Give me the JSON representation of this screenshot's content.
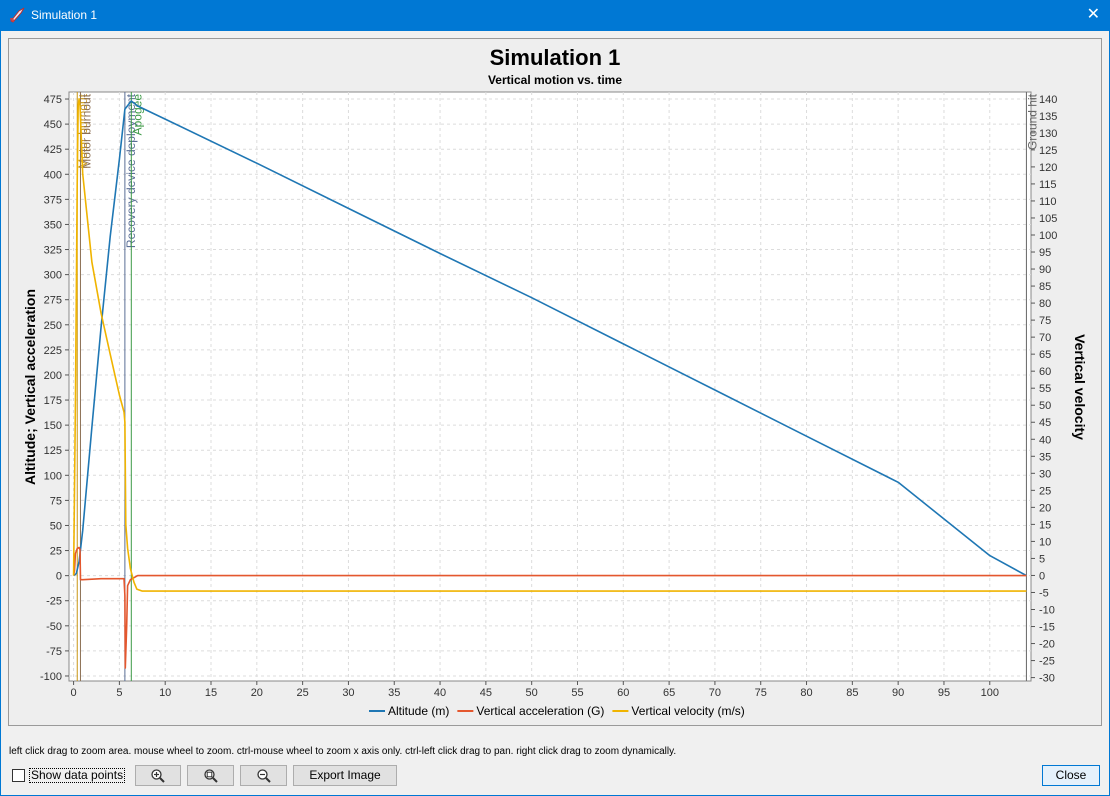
{
  "window": {
    "title": "Simulation 1",
    "close_icon": "close-icon",
    "app_icon": "rocket-icon"
  },
  "chart_data": {
    "type": "line",
    "title": "Simulation 1",
    "subtitle": "Vertical motion vs. time",
    "ylabel_left": "Altitude; Vertical acceleration",
    "ylabel_right": "Vertical velocity",
    "xlim": [
      -0.5,
      104.5
    ],
    "ylim_left": [
      -105,
      482
    ],
    "ylim_right": [
      -31,
      142
    ],
    "x_ticks": [
      0,
      5,
      10,
      15,
      20,
      25,
      30,
      35,
      40,
      45,
      50,
      55,
      60,
      65,
      70,
      75,
      80,
      85,
      90,
      95,
      100
    ],
    "y_left_ticks": [
      475,
      450,
      425,
      400,
      375,
      350,
      325,
      300,
      275,
      250,
      225,
      200,
      175,
      150,
      125,
      100,
      75,
      50,
      25,
      0,
      -25,
      -50,
      -75,
      -100
    ],
    "y_right_ticks": [
      140,
      135,
      130,
      125,
      120,
      115,
      110,
      105,
      100,
      95,
      90,
      85,
      80,
      75,
      70,
      65,
      60,
      55,
      50,
      45,
      40,
      35,
      30,
      25,
      20,
      15,
      10,
      5,
      0,
      -5,
      -10,
      -15,
      -20,
      -25,
      -30
    ],
    "grid": true,
    "legend_position": "bottom",
    "series": [
      {
        "name": "Altitude (m)",
        "axis": "left",
        "color": "#1f77b4",
        "x": [
          0,
          0.3,
          0.6,
          1,
          2,
          3,
          4,
          5,
          5.6,
          6.3,
          7,
          10,
          20,
          30,
          40,
          50,
          60,
          70,
          80,
          90,
          100,
          104
        ],
        "y": [
          0,
          2,
          14,
          45,
          148,
          248,
          338,
          415,
          465,
          473,
          468,
          455,
          411,
          366,
          321,
          277,
          231,
          185,
          139,
          93,
          20,
          0
        ]
      },
      {
        "name": "Vertical acceleration (G)",
        "axis": "left",
        "color": "#e4572e",
        "x": [
          0,
          0.1,
          0.2,
          0.4,
          0.6,
          0.7,
          0.75,
          1,
          3,
          5.5,
          5.6,
          5.65,
          5.8,
          5.9,
          6.2,
          7,
          50,
          104
        ],
        "y": [
          0,
          5,
          22,
          27,
          28,
          26,
          -4,
          -4,
          -3,
          -3,
          -20,
          -92,
          -50,
          -10,
          -4,
          0,
          0,
          0
        ]
      },
      {
        "name": "Vertical velocity (m/s)",
        "axis": "right",
        "color": "#f0b400",
        "x": [
          0,
          0.2,
          0.4,
          0.5,
          0.6,
          0.7,
          1,
          2,
          3,
          4,
          5,
          5.5,
          5.6,
          5.7,
          5.9,
          6.2,
          6.6,
          6.9,
          7.5,
          50,
          104
        ],
        "y": [
          0,
          50,
          115,
          138,
          140,
          138,
          118,
          92,
          77,
          65,
          53,
          48,
          45,
          15,
          8,
          2,
          -2,
          -4,
          -4.6,
          -4.6,
          -4.6
        ]
      }
    ],
    "events": [
      {
        "label": "Motor burnout",
        "x": 0.4,
        "color": "#c89614"
      },
      {
        "label": "Motor burnout",
        "x": 0.75,
        "color": "#8b6e52"
      },
      {
        "label": "Recovery device deployment",
        "x": 5.6,
        "color": "#5a6e96"
      },
      {
        "label": "Apogee",
        "x": 6.3,
        "color": "#3c9a46"
      },
      {
        "label": "Ground hit",
        "x": 104,
        "color": "#666666"
      }
    ]
  },
  "hint_text": "left click drag to zoom area. mouse wheel to zoom. ctrl-mouse wheel to zoom x axis only. ctrl-left click drag to pan.  right click drag to zoom dynamically.",
  "controls": {
    "show_points_label": "Show data points",
    "show_points_checked": false,
    "zoom_in_icon": "zoom-in-icon",
    "zoom_fit_icon": "zoom-fit-icon",
    "zoom_out_icon": "zoom-out-icon",
    "export_label": "Export Image",
    "close_label": "Close"
  }
}
